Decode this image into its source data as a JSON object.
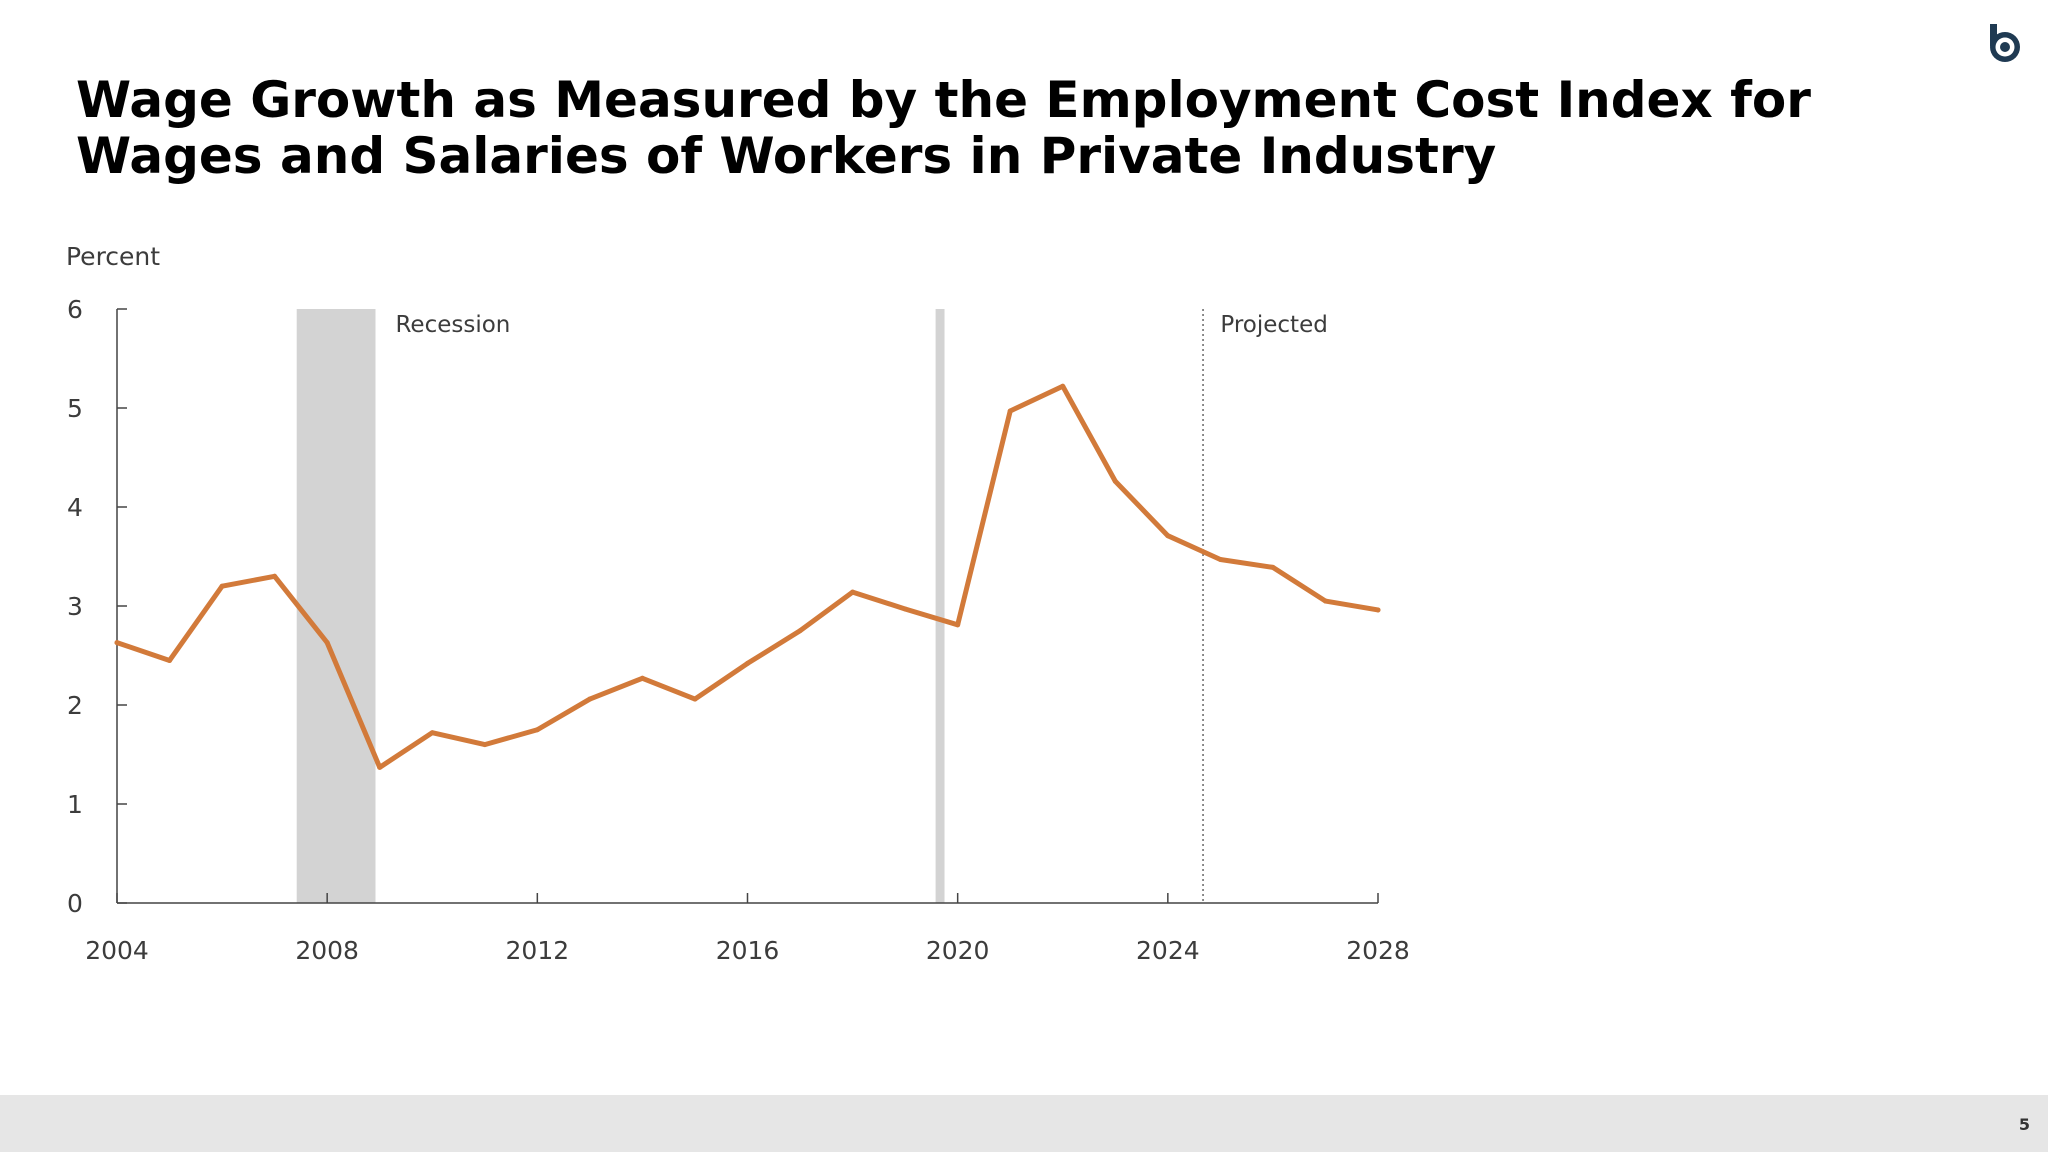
{
  "slide": {
    "title_line1": "Wage Growth as Measured by the Employment Cost Index for",
    "title_line2": "Wages and Salaries of Workers in Private Industry",
    "page_number": "5",
    "logo_icon": "cbo-logo-icon",
    "logo_color": "#1f3a52"
  },
  "chart_data": {
    "type": "line",
    "ylabel": "Percent",
    "xlim": [
      2004,
      2028
    ],
    "ylim": [
      0,
      6
    ],
    "x_ticks": [
      2004,
      2008,
      2012,
      2016,
      2020,
      2024,
      2028
    ],
    "y_ticks": [
      0,
      1,
      2,
      3,
      4,
      5,
      6
    ],
    "grid": false,
    "line_color": "#d27a3a",
    "series": [
      {
        "x": [
          2004,
          2005,
          2006,
          2007,
          2008,
          2009,
          2010,
          2011,
          2012,
          2013,
          2014,
          2015,
          2016,
          2017,
          2018,
          2019,
          2020,
          2021,
          2022,
          2023,
          2024,
          2025,
          2026,
          2027,
          2028
        ],
        "values": [
          2.63,
          2.45,
          3.2,
          3.3,
          2.63,
          1.37,
          1.72,
          1.6,
          1.75,
          2.06,
          2.27,
          2.06,
          2.42,
          2.75,
          3.14,
          2.97,
          2.81,
          4.97,
          5.22,
          4.26,
          3.71,
          3.47,
          3.39,
          3.05,
          2.96
        ]
      }
    ],
    "recessions": [
      {
        "start": 2007.42,
        "end": 2008.92
      },
      {
        "start": 2019.58,
        "end": 2019.75
      }
    ],
    "recession_color": "#d3d3d3",
    "projection_start": 2024.67,
    "annotations": [
      {
        "text": "Recession",
        "x": 2009.3,
        "y": 5.85
      },
      {
        "text": "Projected",
        "x": 2025.0,
        "y": 5.85
      }
    ]
  }
}
